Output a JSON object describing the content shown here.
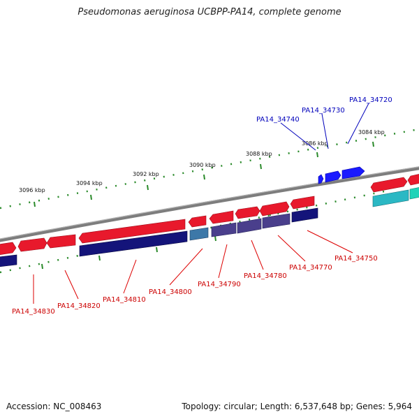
{
  "title": "Pseudomonas aeruginosa UCBPP-PA14, complete genome",
  "footer": {
    "accession": "Accession: NC_008463",
    "summary": "Topology: circular; Length: 6,537,648 bp; Genes: 5,964"
  },
  "colors": {
    "backbone": "#8a8a8a",
    "forward_gene": "#e8192c",
    "reverse_gene": "#14147a",
    "reverse_gene_light": "#4a3f8c",
    "teal_gene": "#2bb8c4",
    "blue_gene": "#1a1aff",
    "tick": "#2a8a2a",
    "red_label": "#cc0000",
    "blue_label": "#0000bb"
  },
  "ticks": [
    "3084 kbp",
    "3086 kbp",
    "3088 kbp",
    "3090 kbp",
    "3092 kbp",
    "3094 kbp",
    "3096 kbp"
  ],
  "gene_labels": {
    "red": [
      "PA14_34830",
      "PA14_34820",
      "PA14_34810",
      "PA14_34800",
      "PA14_34790",
      "PA14_34780",
      "PA14_34770",
      "PA14_34750"
    ],
    "blue": [
      "PA14_34740",
      "PA14_34730",
      "PA14_34720"
    ]
  }
}
